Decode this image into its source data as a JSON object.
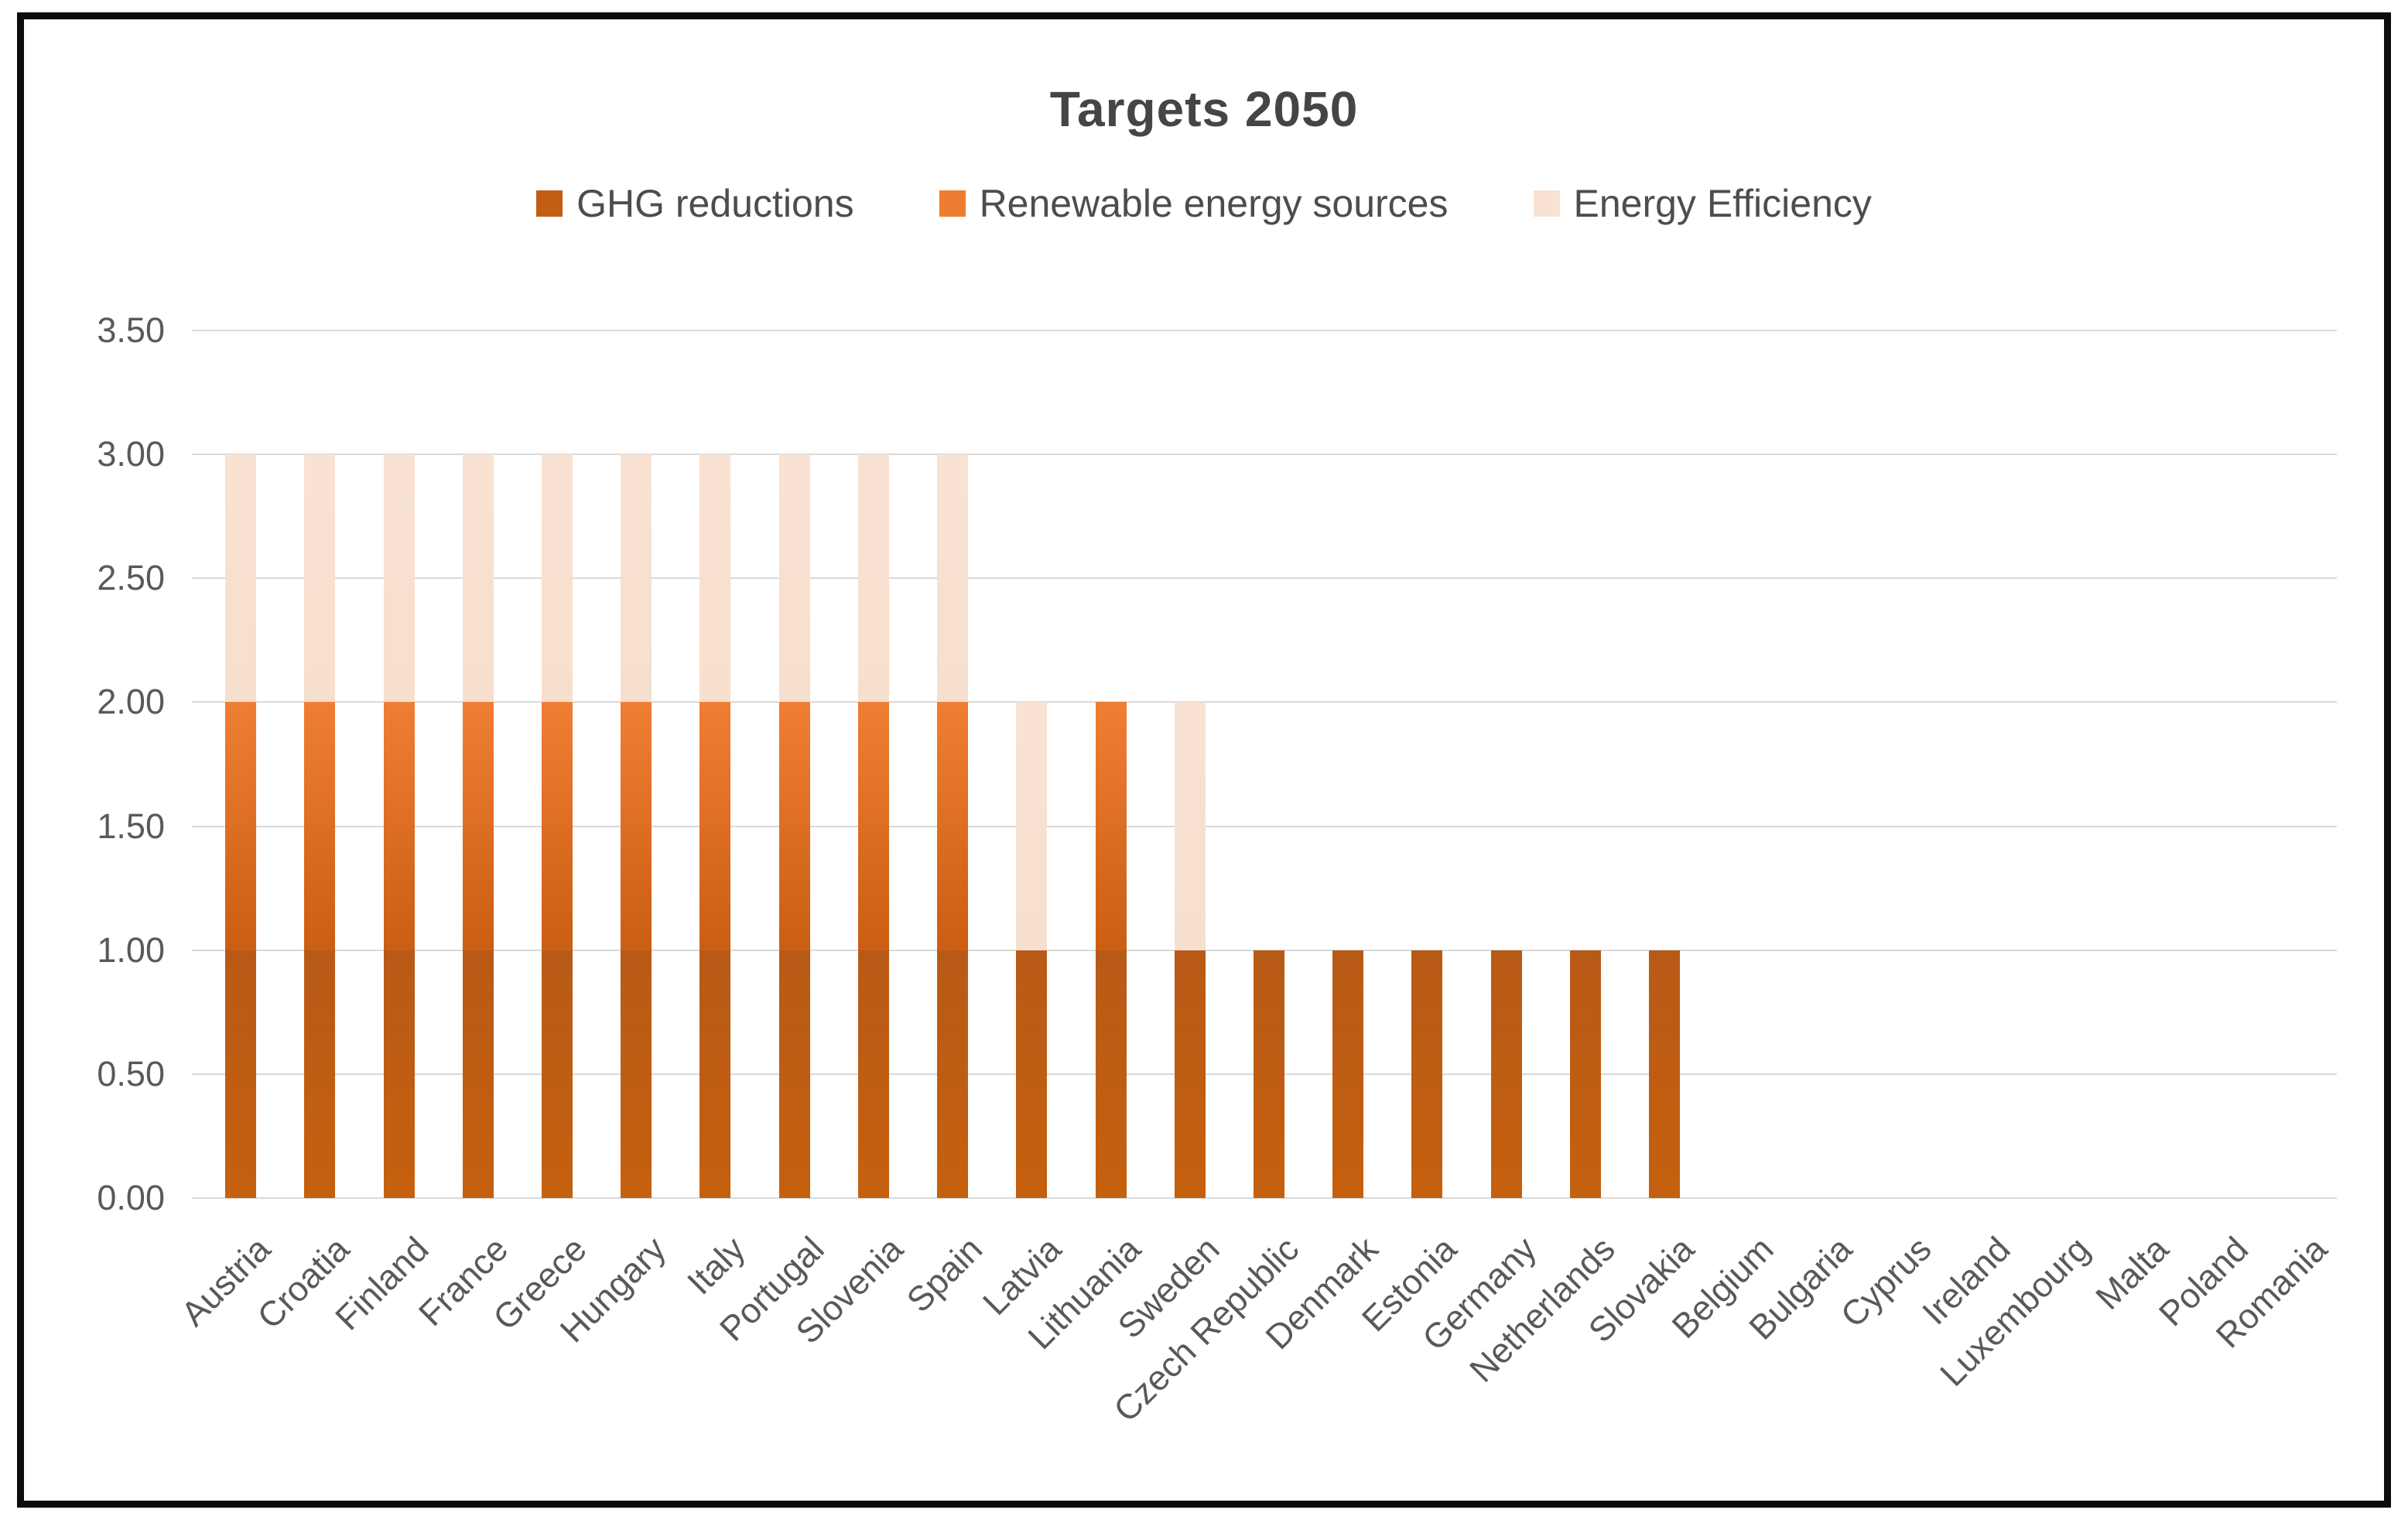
{
  "chart_data": {
    "type": "bar",
    "stacked": true,
    "title": "Targets 2050",
    "categories": [
      "Austria",
      "Croatia",
      "Finland",
      "France",
      "Greece",
      "Hungary",
      "Italy",
      "Portugal",
      "Slovenia",
      "Spain",
      "Latvia",
      "Lithuania",
      "Sweden",
      "Czech Republic",
      "Denmark",
      "Estonia",
      "Germany",
      "Netherlands",
      "Slovakia",
      "Belgium",
      "Bulgaria",
      "Cyprus",
      "Ireland",
      "Luxembourg",
      "Malta",
      "Poland",
      "Romania"
    ],
    "series": [
      {
        "name": "GHG reductions",
        "color": "#C25E14",
        "gradient": [
          "#B85A17",
          "#C5600E"
        ],
        "values": [
          1,
          1,
          1,
          1,
          1,
          1,
          1,
          1,
          1,
          1,
          1,
          1,
          1,
          1,
          1,
          1,
          1,
          1,
          1,
          0,
          0,
          0,
          0,
          0,
          0,
          0,
          0
        ]
      },
      {
        "name": "Renewable energy sources",
        "color": "#ED7D31",
        "gradient": [
          "#EF7E33",
          "#CA5E12"
        ],
        "values": [
          1,
          1,
          1,
          1,
          1,
          1,
          1,
          1,
          1,
          1,
          0,
          1,
          0,
          0,
          0,
          0,
          0,
          0,
          0,
          0,
          0,
          0,
          0,
          0,
          0,
          0,
          0
        ]
      },
      {
        "name": "Energy Efficiency",
        "color": "#F9E2D2",
        "gradient": [
          "#F9E2D2",
          "#F7DFCD"
        ],
        "values": [
          1,
          1,
          1,
          1,
          1,
          1,
          1,
          1,
          1,
          1,
          1,
          0,
          1,
          0,
          0,
          0,
          0,
          0,
          0,
          0,
          0,
          0,
          0,
          0,
          0,
          0,
          0
        ]
      }
    ],
    "ylim": [
      0,
      3.5
    ],
    "ytick_step": 0.5,
    "ytick_labels": [
      "0.00",
      "0.50",
      "1.00",
      "1.50",
      "2.00",
      "2.50",
      "3.00",
      "3.50"
    ],
    "grid": true,
    "gridline_color": "#D9D9D9",
    "legend_position": "top",
    "x_label_rotation_deg": 45
  }
}
